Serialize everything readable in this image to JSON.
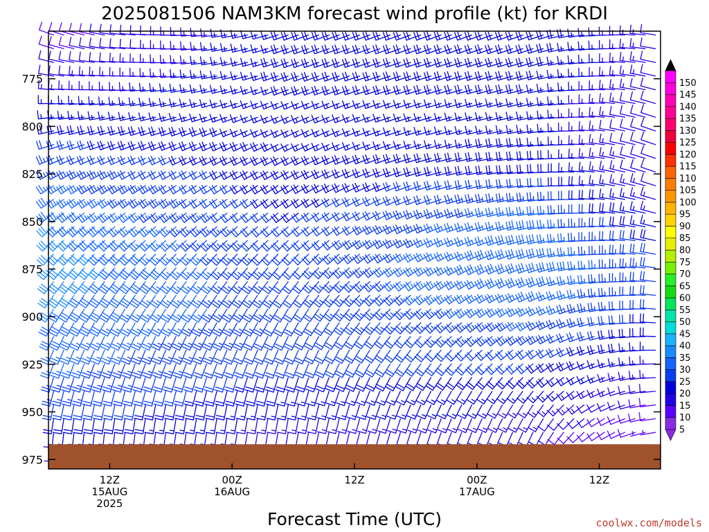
{
  "chart_data": {
    "type": "wind-barb-time-height",
    "title": "2025081506 NAM3KM forecast wind profile (kt) for KRDI",
    "xlabel": "Forecast Time (UTC)",
    "ylabel": "",
    "credit": "coolwx.com/models",
    "y_axis": {
      "unit": "hPa",
      "inverted": true,
      "range": [
        980,
        750
      ],
      "ticks": [
        775,
        800,
        825,
        850,
        875,
        900,
        925,
        950,
        975
      ]
    },
    "x_axis": {
      "unit": "hours",
      "range": [
        0,
        60
      ],
      "ticks": [
        {
          "hour": 6,
          "lines": [
            "12Z",
            "15AUG",
            "2025"
          ]
        },
        {
          "hour": 18,
          "lines": [
            "00Z",
            "16AUG"
          ]
        },
        {
          "hour": 30,
          "lines": [
            "12Z"
          ]
        },
        {
          "hour": 42,
          "lines": [
            "00Z",
            "17AUG"
          ]
        },
        {
          "hour": 54,
          "lines": [
            "12Z"
          ]
        }
      ]
    },
    "colorbar": {
      "unit": "kt",
      "levels": [
        5,
        10,
        15,
        20,
        25,
        30,
        35,
        40,
        45,
        50,
        55,
        60,
        65,
        70,
        75,
        80,
        85,
        90,
        95,
        100,
        105,
        110,
        115,
        120,
        125,
        130,
        135,
        140,
        145,
        150
      ],
      "colors": [
        "#8a2be2",
        "#5a00ff",
        "#2000e6",
        "#0000dc",
        "#0a3cf0",
        "#1464ff",
        "#1a8cff",
        "#1ab4ff",
        "#00dcdc",
        "#00e6a8",
        "#00e65a",
        "#14dc14",
        "#28f028",
        "#78f000",
        "#b4f000",
        "#e6f000",
        "#ffff00",
        "#ffd200",
        "#ffb400",
        "#ff9600",
        "#ff7d00",
        "#ff6400",
        "#ff3200",
        "#ff0000",
        "#f0003c",
        "#ff006e",
        "#ff0096",
        "#ff00b4",
        "#ff00dc",
        "#ff00ff"
      ]
    },
    "terrain": {
      "surface_hpa": 967,
      "color": "#a0522d"
    },
    "profile_hours": [
      0,
      24,
      48,
      60
    ],
    "levels_hpa": [
      975,
      950,
      925,
      900,
      875,
      850,
      825,
      800,
      775,
      755
    ],
    "series": [
      {
        "name": "speed_kt",
        "values": [
          [
            8,
            22,
            26,
            30,
            33,
            30,
            25,
            18,
            12,
            8
          ],
          [
            7,
            15,
            20,
            22,
            22,
            20,
            18,
            17,
            18,
            18
          ],
          [
            6,
            14,
            20,
            26,
            30,
            28,
            20,
            16,
            18,
            20
          ],
          [
            5,
            8,
            14,
            20,
            22,
            15,
            10,
            10,
            12,
            12
          ]
        ]
      },
      {
        "name": "direction_deg",
        "values": [
          [
            180,
            190,
            200,
            210,
            220,
            230,
            240,
            260,
            280,
            290
          ],
          [
            190,
            190,
            200,
            210,
            220,
            230,
            240,
            245,
            250,
            250
          ],
          [
            200,
            210,
            230,
            240,
            250,
            260,
            265,
            260,
            255,
            250
          ],
          [
            260,
            265,
            270,
            275,
            280,
            285,
            290,
            290,
            285,
            280
          ]
        ]
      }
    ],
    "grid": false,
    "legend": "colorbar-right"
  }
}
